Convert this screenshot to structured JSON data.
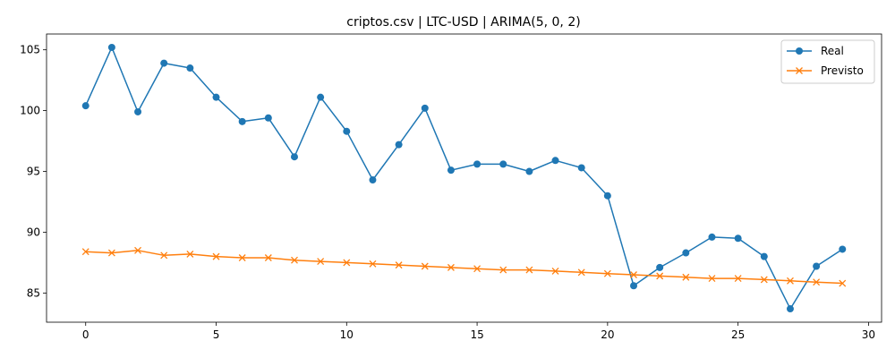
{
  "chart_data": {
    "type": "line",
    "title": "criptos.csv | LTC-USD | ARIMA(5, 0, 2)",
    "xlabel": "",
    "ylabel": "",
    "xlim": [
      -1.5,
      30.5
    ],
    "ylim": [
      82.6,
      106.3
    ],
    "xticks": [
      0,
      5,
      10,
      15,
      20,
      25,
      30
    ],
    "yticks": [
      85,
      90,
      95,
      100,
      105
    ],
    "grid": false,
    "legend_position": "top-right",
    "x": [
      0,
      1,
      2,
      3,
      4,
      5,
      6,
      7,
      8,
      9,
      10,
      11,
      12,
      13,
      14,
      15,
      16,
      17,
      18,
      19,
      20,
      21,
      22,
      23,
      24,
      25,
      26,
      27,
      28,
      29
    ],
    "series": [
      {
        "name": "Real",
        "color": "#1f77b4",
        "marker": "circle",
        "values": [
          100.4,
          105.2,
          99.9,
          103.9,
          103.5,
          101.1,
          99.1,
          99.4,
          96.2,
          101.1,
          98.3,
          94.3,
          97.2,
          100.2,
          95.1,
          95.6,
          95.6,
          95.0,
          95.9,
          95.3,
          93.0,
          85.6,
          87.1,
          88.3,
          89.6,
          89.5,
          88.0,
          83.7,
          87.2,
          88.6
        ]
      },
      {
        "name": "Previsto",
        "color": "#ff7f0e",
        "marker": "x",
        "values": [
          88.4,
          88.3,
          88.5,
          88.1,
          88.2,
          88.0,
          87.9,
          87.9,
          87.7,
          87.6,
          87.5,
          87.4,
          87.3,
          87.2,
          87.1,
          87.0,
          86.9,
          86.9,
          86.8,
          86.7,
          86.6,
          86.5,
          86.4,
          86.3,
          86.2,
          86.2,
          86.1,
          86.0,
          85.9,
          85.8
        ]
      }
    ]
  }
}
